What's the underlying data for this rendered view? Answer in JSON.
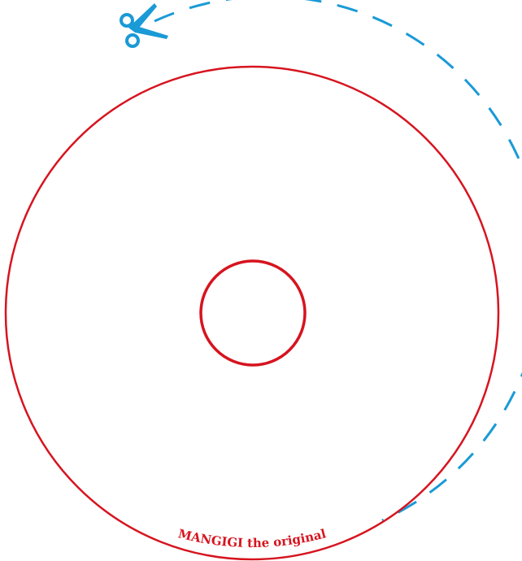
{
  "brand": {
    "text": "MANGIGI the original"
  },
  "colors": {
    "outline": "#d6141f",
    "cut_line": "#1a9ad6",
    "background": "#ffffff"
  },
  "icons": {
    "cut_marker": "scissors-icon"
  }
}
